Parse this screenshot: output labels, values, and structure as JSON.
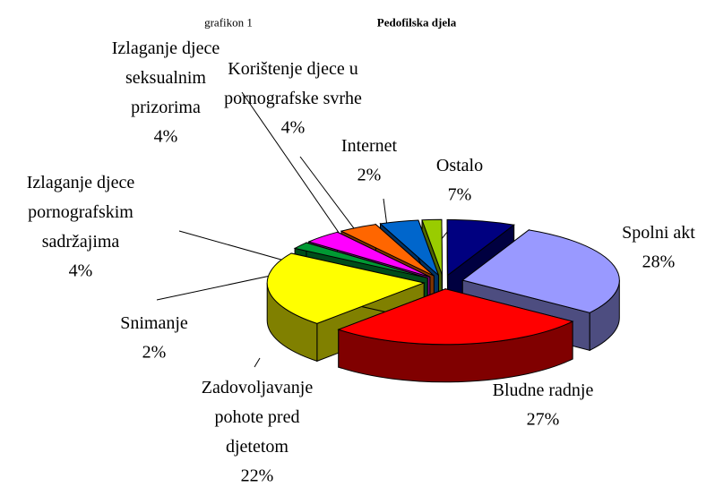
{
  "chart_data": {
    "type": "pie",
    "annotation": "grafikon 1",
    "title": "Pedofilska djela",
    "categories": [
      "Spolni akt",
      "Bludne radnje",
      "Zadovoljavanje pohote pred djetetom",
      "Snimanje",
      "Izlaganje djece pornografskim sadržajima",
      "Izlaganje djece seksualnim prizorima",
      "Korištenje djece u pornografske svrhe",
      "Internet",
      "Ostalo"
    ],
    "values": [
      28,
      27,
      22,
      2,
      4,
      4,
      4,
      2,
      7
    ],
    "value_labels": [
      "28%",
      "27%",
      "22%",
      "2%",
      "4%",
      "4%",
      "4%",
      "2%",
      "7%"
    ],
    "colors": [
      "#9999ff",
      "#ff0000",
      "#ffff00",
      "#009933",
      "#ff00ff",
      "#ff6600",
      "#0066cc",
      "#99cc00",
      "#000080"
    ]
  }
}
